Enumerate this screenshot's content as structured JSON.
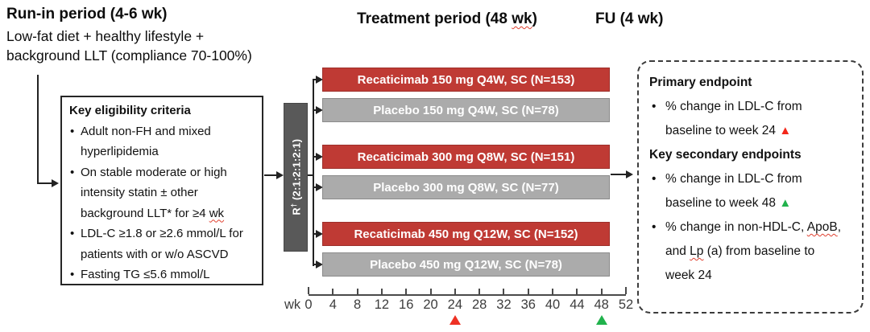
{
  "phases": {
    "run_in": {
      "title": "Run-in period (4-6 wk)",
      "desc_line1": "Low-fat diet + healthy lifestyle +",
      "desc_line2": "background LLT (compliance 70-100%)"
    },
    "treatment": {
      "title_pre": "Treatment period (48 ",
      "title_wavy": "wk",
      "title_post": ")"
    },
    "followup": {
      "title": "FU (4 wk)"
    }
  },
  "eligibility": {
    "title": "Key eligibility criteria",
    "item1": "Adult non-FH and mixed hyperlipidemia",
    "item2_pre": "On stable moderate or high intensity statin ± other background LLT* for ≥4 ",
    "item2_wavy": "wk",
    "item3": "LDL-C ≥1.8 or ≥2.6 mmol/L for patients with or w/o ASCVD",
    "item4": "Fasting TG ≤5.6 mmol/L"
  },
  "randomization": {
    "label": "R",
    "superscript": "†",
    "ratio": "(2:1:2:1:2:1)"
  },
  "arms": [
    {
      "label": "Recaticimab 150 mg Q4W, SC (N=153)",
      "type": "active"
    },
    {
      "label": "Placebo 150 mg Q4W, SC (N=78)",
      "type": "placebo"
    },
    {
      "label": "Recaticimab 300 mg Q8W, SC (N=151)",
      "type": "active"
    },
    {
      "label": "Placebo 300 mg Q8W, SC (N=77)",
      "type": "placebo"
    },
    {
      "label": "Recaticimab 450 mg Q12W, SC (N=152)",
      "type": "active"
    },
    {
      "label": "Placebo 450 mg Q12W, SC (N=78)",
      "type": "placebo"
    }
  ],
  "timeline": {
    "unit": "wk",
    "ticks": [
      0,
      4,
      8,
      12,
      16,
      20,
      24,
      28,
      32,
      36,
      40,
      44,
      48,
      52
    ],
    "markers": [
      {
        "week": 24,
        "color": "#ee3124"
      },
      {
        "week": 48,
        "color": "#21b24c"
      }
    ]
  },
  "endpoints": {
    "primary_title": "Primary endpoint",
    "primary_item_text": "% change in LDL-C from baseline to week 24 ",
    "primary_marker": "▲",
    "primary_marker_color": "#f3271a",
    "secondary_title": "Key secondary endpoints",
    "secondary_item1_text": "% change in LDL-C from baseline to week 48 ",
    "secondary_item1_marker": "▲",
    "secondary_item1_marker_color": "#21b24c",
    "secondary_item2_seg1": "% change in non-HDL-C, ",
    "secondary_item2_wavy1": "ApoB",
    "secondary_item2_seg2": ", and ",
    "secondary_item2_wavy2": "Lp",
    "secondary_item2_seg3": " (a) from baseline to week 24"
  },
  "colors": {
    "active_arm": "#bf3a34",
    "placebo_arm": "#ababab",
    "randomization_box": "#595959",
    "marker_red": "#ee3124",
    "marker_green": "#21b24c"
  }
}
